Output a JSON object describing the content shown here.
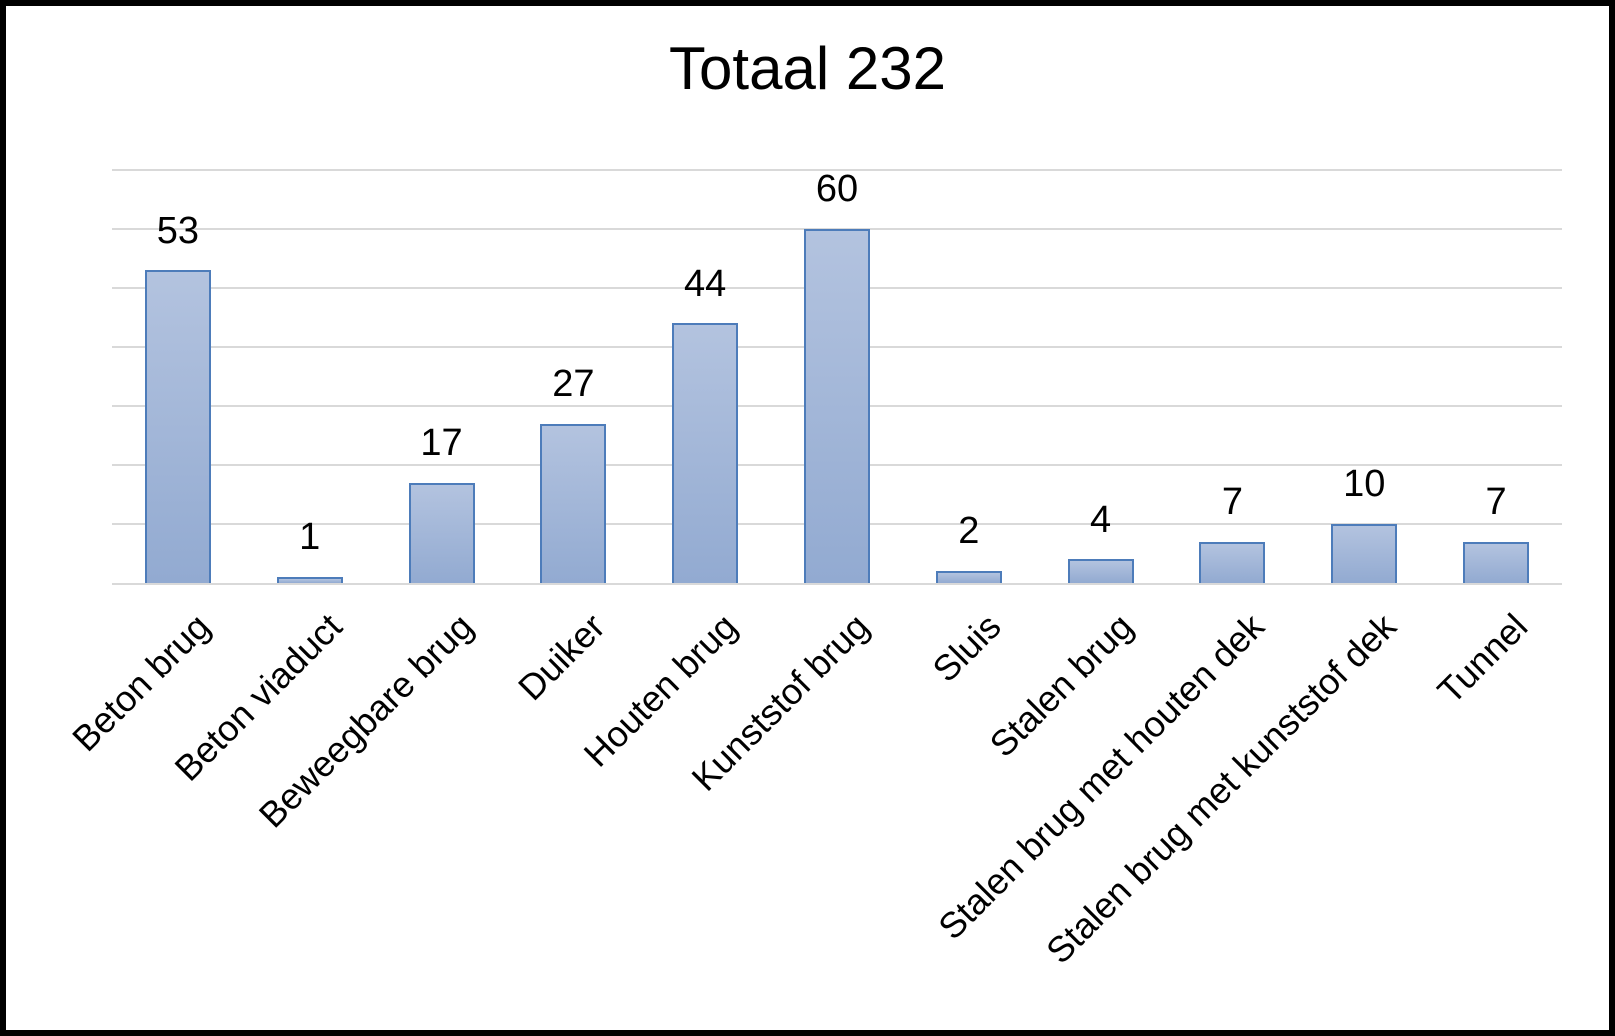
{
  "chart_data": {
    "type": "bar",
    "title": "Totaal 232",
    "categories": [
      "Beton brug",
      "Beton viaduct",
      "Beweegbare brug",
      "Duiker",
      "Houten brug",
      "Kunststof brug",
      "Sluis",
      "Stalen brug",
      "Stalen brug met houten dek",
      "Stalen brug met kunststof dek",
      "Tunnel"
    ],
    "values": [
      53,
      1,
      17,
      27,
      44,
      60,
      2,
      4,
      7,
      10,
      7
    ],
    "xlabel": "",
    "ylabel": "",
    "ylim": [
      0,
      70
    ],
    "gridline_step": 10,
    "grid": "horizontal",
    "legend": "none",
    "data_labels": "above-bars",
    "x_label_rotation_deg": 45,
    "colors": {
      "bar_fill_top": "#b3c3df",
      "bar_fill_bottom": "#92aad1",
      "bar_border": "#4d7cba",
      "gridline": "#d9d9d9",
      "text": "#000000",
      "background": "#ffffff",
      "frame": "#000000"
    }
  }
}
